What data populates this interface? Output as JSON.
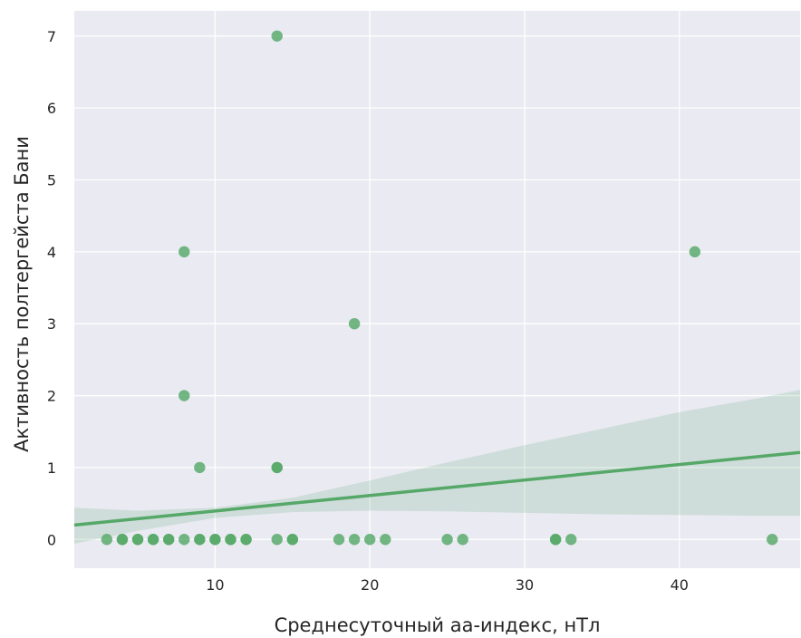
{
  "chart_data": {
    "type": "scatter",
    "title": "",
    "xlabel": "Среднесуточный аа-индекс, нТл",
    "ylabel": "Активность полтергейста Бани",
    "xlim": [
      0.9,
      47.8
    ],
    "ylim": [
      -0.4,
      7.35
    ],
    "x_ticks": [
      10,
      20,
      30,
      40
    ],
    "y_ticks": [
      0,
      1,
      2,
      3,
      4,
      5,
      6,
      7
    ],
    "grid": true,
    "colors": {
      "background": "#eaeaf2",
      "grid": "#ffffff",
      "points": "#55a868",
      "regression_line": "#55a868",
      "confidence_band": "#55a868"
    },
    "points": [
      {
        "x": 3,
        "y": 0
      },
      {
        "x": 4,
        "y": 0
      },
      {
        "x": 4,
        "y": 0
      },
      {
        "x": 5,
        "y": 0
      },
      {
        "x": 5,
        "y": 0
      },
      {
        "x": 6,
        "y": 0
      },
      {
        "x": 6,
        "y": 0
      },
      {
        "x": 7,
        "y": 0
      },
      {
        "x": 7,
        "y": 0
      },
      {
        "x": 8,
        "y": 0
      },
      {
        "x": 9,
        "y": 0
      },
      {
        "x": 9,
        "y": 0
      },
      {
        "x": 10,
        "y": 0
      },
      {
        "x": 10,
        "y": 0
      },
      {
        "x": 11,
        "y": 0
      },
      {
        "x": 11,
        "y": 0
      },
      {
        "x": 12,
        "y": 0
      },
      {
        "x": 12,
        "y": 0
      },
      {
        "x": 14,
        "y": 0
      },
      {
        "x": 15,
        "y": 0
      },
      {
        "x": 15,
        "y": 0
      },
      {
        "x": 18,
        "y": 0
      },
      {
        "x": 19,
        "y": 0
      },
      {
        "x": 20,
        "y": 0
      },
      {
        "x": 21,
        "y": 0
      },
      {
        "x": 25,
        "y": 0
      },
      {
        "x": 26,
        "y": 0
      },
      {
        "x": 32,
        "y": 0
      },
      {
        "x": 32,
        "y": 0
      },
      {
        "x": 33,
        "y": 0
      },
      {
        "x": 46,
        "y": 0
      },
      {
        "x": 9,
        "y": 1
      },
      {
        "x": 14,
        "y": 1
      },
      {
        "x": 14,
        "y": 1
      },
      {
        "x": 8,
        "y": 2
      },
      {
        "x": 19,
        "y": 3
      },
      {
        "x": 8,
        "y": 4
      },
      {
        "x": 41,
        "y": 4
      },
      {
        "x": 14,
        "y": 7
      }
    ],
    "regression_line": [
      {
        "x": 0.9,
        "y": 0.2
      },
      {
        "x": 47.8,
        "y": 1.21
      }
    ],
    "confidence_band": {
      "x": [
        0.9,
        5,
        10,
        15,
        20,
        25,
        30,
        35,
        40,
        45,
        47.8
      ],
      "lower": [
        -0.06,
        0.12,
        0.3,
        0.38,
        0.4,
        0.39,
        0.37,
        0.35,
        0.34,
        0.33,
        0.33
      ],
      "upper": [
        0.44,
        0.4,
        0.44,
        0.58,
        0.82,
        1.07,
        1.31,
        1.54,
        1.77,
        1.96,
        2.08
      ]
    }
  }
}
